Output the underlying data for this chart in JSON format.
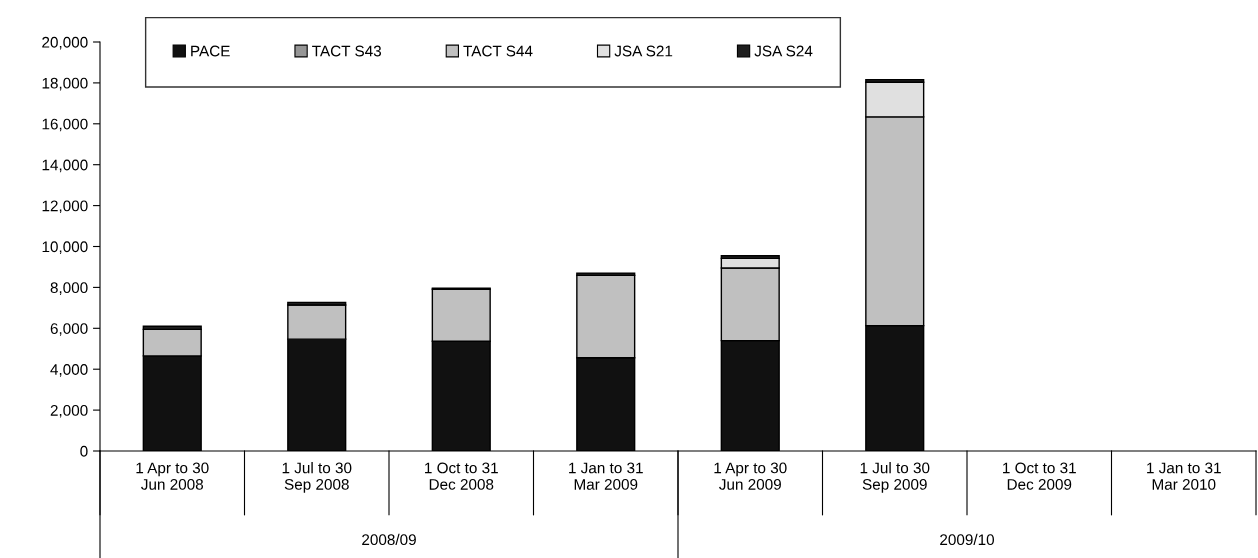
{
  "chart_data": {
    "type": "bar",
    "stacked": true,
    "categories": [
      "1 Apr to 30\nJun 2008",
      "1 Jul to 30\nSep 2008",
      "1 Oct to 31\nDec 2008",
      "1 Jan to 31\nMar 2009",
      "1 Apr to 30\nJun 2009",
      "1 Jul to 30\nSep 2009",
      "1 Oct to 31\nDec 2009",
      "1 Jan to 31\nMar 2010"
    ],
    "series": [
      {
        "name": "PACE",
        "color": "#111111",
        "values": [
          4650,
          5470,
          5370,
          4560,
          5400,
          6130,
          null,
          null
        ]
      },
      {
        "name": "TACT S43",
        "color": "#969696",
        "values": [
          0,
          0,
          0,
          0,
          0,
          0,
          null,
          null
        ]
      },
      {
        "name": "TACT S44",
        "color": "#c0c0c0",
        "values": [
          1300,
          1670,
          2540,
          4030,
          3550,
          10210,
          null,
          null
        ]
      },
      {
        "name": "JSA S21",
        "color": "#e0e0e0",
        "values": [
          0,
          0,
          0,
          0,
          470,
          1690,
          null,
          null
        ]
      },
      {
        "name": "JSA S24",
        "color": "#1e1e1e",
        "values": [
          150,
          130,
          50,
          110,
          130,
          130,
          null,
          null
        ]
      }
    ],
    "ylim": [
      0,
      20000
    ],
    "yticks": [
      0,
      {
        "value": 2000,
        "label": "2,000"
      },
      {
        "value": 4000,
        "label": "4,000"
      },
      {
        "value": 6000,
        "label": "6,000"
      },
      {
        "value": 8000,
        "label": "8,000"
      },
      {
        "value": 10000,
        "label": "10,000"
      },
      {
        "value": 12000,
        "label": "12,000"
      },
      {
        "value": 14000,
        "label": "14,000"
      },
      {
        "value": 16000,
        "label": "16,000"
      },
      {
        "value": 18000,
        "label": "18,000"
      },
      {
        "value": 20000,
        "label": "20,000"
      }
    ],
    "annotations": [
      "2008/09",
      "2009/10"
    ],
    "legend": "top left",
    "grid": false
  }
}
